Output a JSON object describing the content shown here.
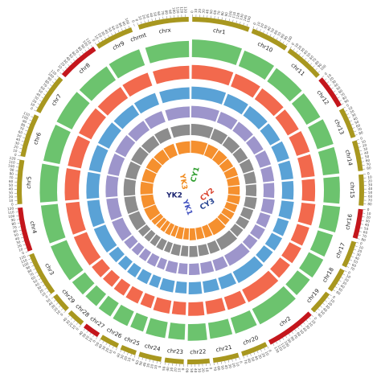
{
  "chart_data": {
    "type": "circos",
    "chromosomes": [
      "chr1",
      "chr10",
      "chr11",
      "chr12",
      "chr13",
      "chr14",
      "chr15",
      "chr16",
      "chr17",
      "chr18",
      "chr19",
      "chr2",
      "chr20",
      "chr21",
      "chr22",
      "chr23",
      "chr24",
      "chr25",
      "chr26",
      "chr27",
      "chr28",
      "chr29",
      "chr3",
      "chr4",
      "chr5",
      "chr6",
      "chr7",
      "chr8",
      "chr9",
      "chrmt",
      "chrx"
    ],
    "lengths": [
      158,
      104,
      107,
      91,
      84,
      84,
      85,
      81,
      73,
      66,
      64,
      137,
      72,
      71,
      61,
      52,
      62,
      43,
      51,
      45,
      46,
      51,
      121,
      121,
      121,
      119,
      112,
      113,
      105,
      0.016,
      139
    ],
    "chromosome_colors": [
      "#a8971f",
      "#a8971f",
      "#a8971f",
      "#c4161c",
      "#a8971f",
      "#a8971f",
      "#a8971f",
      "#c4161c",
      "#a8971f",
      "#a8971f",
      "#a8971f",
      "#c4161c",
      "#a8971f",
      "#a8971f",
      "#a8971f",
      "#a8971f",
      "#a8971f",
      "#a8971f",
      "#a8971f",
      "#c4161c",
      "#a8971f",
      "#a8971f",
      "#a8971f",
      "#c4161c",
      "#a8971f",
      "#a8971f",
      "#a8971f",
      "#c4161c",
      "#a8971f",
      "#a8971f",
      "#a8971f"
    ],
    "ticks": [
      0,
      10,
      20,
      30,
      40,
      50,
      60,
      70,
      80,
      90,
      100,
      110,
      120,
      130,
      140,
      150
    ],
    "ylim": [
      0,
      1
    ],
    "series": [
      {
        "name": "CY1",
        "color": "#6cc36e",
        "label_color": "#2e9e2e",
        "values": [
          0.78,
          0.74,
          0.72,
          0.7,
          0.75,
          0.73,
          0.71,
          0.76,
          0.7,
          0.72,
          0.69,
          0.77,
          0.73,
          0.71,
          0.74,
          0.7,
          0.72,
          0.68,
          0.71,
          0.7,
          0.69,
          0.72,
          0.76,
          0.75,
          0.77,
          0.74,
          0.76,
          0.73,
          0.75,
          0.6,
          0.72
        ]
      },
      {
        "name": "CY2",
        "color": "#f2694d",
        "label_color": "#d9412b",
        "values": [
          0.72,
          0.7,
          0.68,
          0.66,
          0.71,
          0.69,
          0.67,
          0.72,
          0.66,
          0.68,
          0.65,
          0.73,
          0.69,
          0.67,
          0.7,
          0.66,
          0.68,
          0.64,
          0.67,
          0.66,
          0.65,
          0.68,
          0.72,
          0.71,
          0.73,
          0.7,
          0.72,
          0.69,
          0.71,
          0.55,
          0.68
        ]
      },
      {
        "name": "CY3",
        "color": "#5aa2d6",
        "label_color": "#223f8f",
        "values": [
          0.7,
          0.68,
          0.66,
          0.64,
          0.69,
          0.67,
          0.65,
          0.7,
          0.64,
          0.66,
          0.63,
          0.71,
          0.67,
          0.65,
          0.68,
          0.64,
          0.66,
          0.62,
          0.65,
          0.64,
          0.63,
          0.66,
          0.7,
          0.69,
          0.71,
          0.68,
          0.7,
          0.67,
          0.69,
          0.55,
          0.66
        ]
      },
      {
        "name": "YK1",
        "color": "#9d95cb",
        "label_color": "#3f4fbf",
        "values": [
          0.72,
          0.7,
          0.68,
          0.66,
          0.71,
          0.69,
          0.67,
          0.72,
          0.66,
          0.68,
          0.65,
          0.73,
          0.69,
          0.67,
          0.7,
          0.66,
          0.68,
          0.64,
          0.67,
          0.66,
          0.65,
          0.68,
          0.72,
          0.71,
          0.73,
          0.7,
          0.72,
          0.69,
          0.71,
          0.55,
          0.68
        ]
      },
      {
        "name": "YK2",
        "color": "#8c8c8c",
        "label_color": "#1b2470",
        "values": [
          0.74,
          0.72,
          0.7,
          0.68,
          0.73,
          0.71,
          0.69,
          0.74,
          0.68,
          0.7,
          0.67,
          0.75,
          0.71,
          0.69,
          0.72,
          0.68,
          0.7,
          0.66,
          0.69,
          0.68,
          0.67,
          0.7,
          0.74,
          0.73,
          0.75,
          0.72,
          0.74,
          0.71,
          0.73,
          0.55,
          0.7
        ]
      },
      {
        "name": "YK3",
        "color": "#f5902e",
        "label_color": "#f08a1e",
        "values": [
          0.8,
          0.78,
          0.76,
          0.74,
          0.79,
          0.77,
          0.75,
          0.8,
          0.74,
          0.76,
          0.73,
          0.81,
          0.77,
          0.75,
          0.78,
          0.74,
          0.76,
          0.72,
          0.75,
          0.74,
          0.73,
          0.76,
          0.8,
          0.79,
          0.81,
          0.78,
          0.8,
          0.77,
          0.79,
          0.6,
          0.76
        ]
      }
    ]
  }
}
